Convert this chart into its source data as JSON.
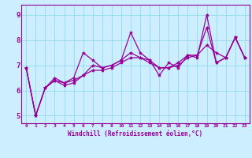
{
  "xlabel": "Windchill (Refroidissement éolien,°C)",
  "bg_color": "#cceeff",
  "grid_color": "#99ddee",
  "line_color": "#990099",
  "xlim": [
    -0.5,
    23.5
  ],
  "ylim": [
    4.7,
    9.4
  ],
  "xticks": [
    0,
    1,
    2,
    3,
    4,
    5,
    6,
    7,
    8,
    9,
    10,
    11,
    12,
    13,
    14,
    15,
    16,
    17,
    18,
    19,
    20,
    21,
    22,
    23
  ],
  "yticks": [
    5,
    6,
    7,
    8,
    9
  ],
  "series": [
    [
      6.9,
      5.0,
      6.1,
      6.5,
      6.3,
      6.5,
      7.5,
      7.2,
      6.9,
      7.0,
      7.2,
      8.3,
      7.5,
      7.2,
      6.6,
      7.1,
      6.9,
      7.4,
      7.3,
      9.0,
      7.1,
      7.3,
      8.1,
      7.3
    ],
    [
      6.9,
      5.0,
      6.1,
      6.4,
      6.2,
      6.3,
      6.6,
      6.8,
      6.8,
      6.9,
      7.1,
      7.3,
      7.3,
      7.1,
      6.9,
      6.9,
      7.0,
      7.3,
      7.4,
      7.8,
      7.5,
      7.3,
      8.1,
      7.3
    ],
    [
      6.9,
      5.0,
      6.1,
      6.4,
      6.3,
      6.4,
      6.6,
      7.0,
      6.9,
      7.0,
      7.2,
      7.5,
      7.3,
      7.2,
      6.9,
      6.9,
      7.1,
      7.4,
      7.4,
      8.5,
      7.1,
      7.3,
      8.1,
      7.3
    ]
  ]
}
